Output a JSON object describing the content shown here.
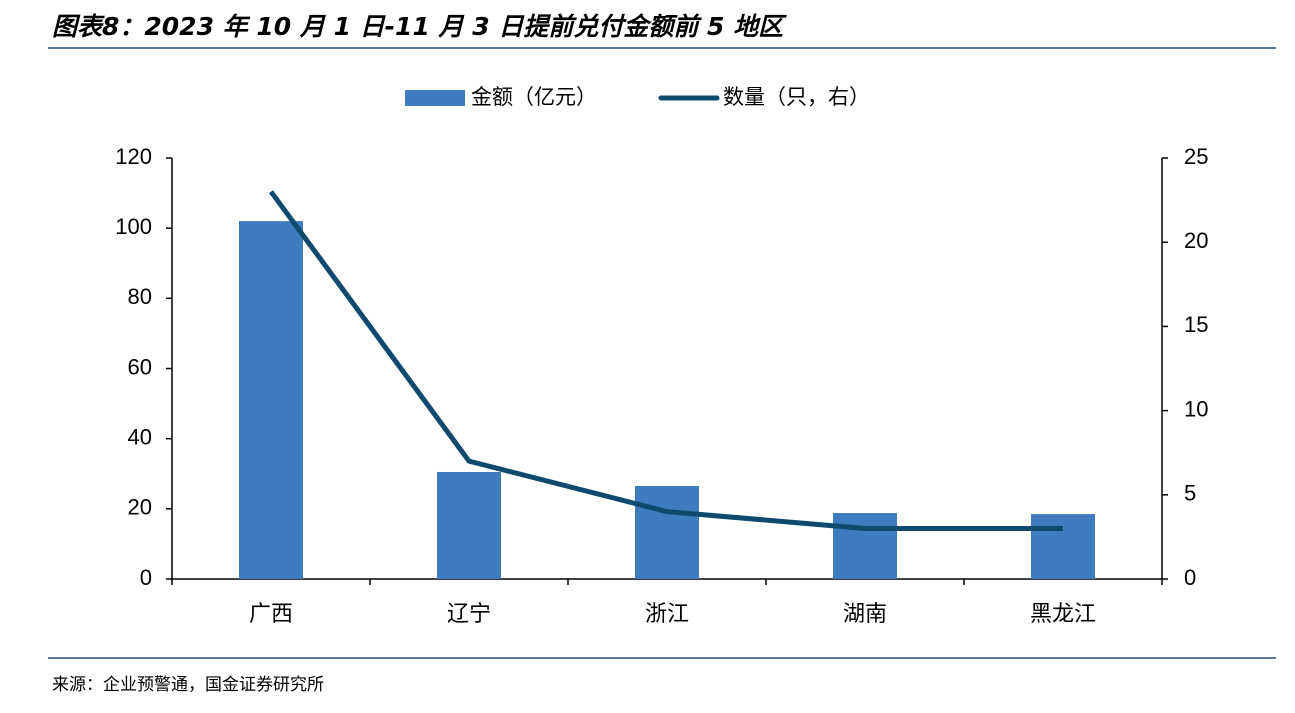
{
  "chart_data": {
    "type": "bar_line",
    "title": "图表8：2023 年 10 月 1 日-11 月 3 日提前兑付金额前 5 地区",
    "source": "来源：企业预警通，国金证券研究所",
    "categories": [
      "广西",
      "辽宁",
      "浙江",
      "湖南",
      "黑龙江"
    ],
    "series": [
      {
        "name": "金额（亿元）",
        "color": "#3f7cbf",
        "type": "bar",
        "values": [
          102,
          30.5,
          26.5,
          18.8,
          18.5
        ]
      },
      {
        "name": "数量（只，右）",
        "color": "#0e4a6e",
        "type": "line",
        "axis": "y2",
        "values": [
          23,
          7,
          4,
          3,
          3
        ]
      }
    ],
    "ylim": [
      0,
      120
    ],
    "yticks": [
      0,
      20,
      40,
      60,
      80,
      100,
      120
    ],
    "y2lim": [
      0,
      25
    ],
    "y2ticks": [
      0,
      5,
      10,
      15,
      20,
      25
    ],
    "legend": "top"
  }
}
